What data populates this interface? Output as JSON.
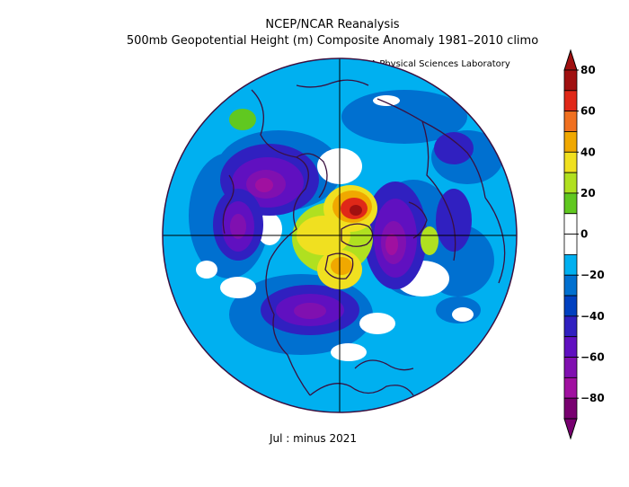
{
  "title_line1": "NCEP/NCAR Reanalysis",
  "title_line2": "500mb Geopotential Height (m) Composite Anomaly 1981–2010 climo",
  "credit": "NOAA Physical Sciences Laboratory",
  "footer": "Jul :   minus 2021",
  "colorbar": {
    "levels": [
      "80",
      "60",
      "40",
      "20",
      "0",
      "−20",
      "−40",
      "−60",
      "−80"
    ],
    "colors": [
      "#a01010",
      "#e02818",
      "#f07020",
      "#f0a800",
      "#f0e020",
      "#b0e020",
      "#60c820",
      "#ffffff",
      "#ffffff",
      "#00b0f0",
      "#0070d0",
      "#0040c0",
      "#3020c0",
      "#6010c0",
      "#8010b0",
      "#a010a0",
      "#780070"
    ]
  }
}
